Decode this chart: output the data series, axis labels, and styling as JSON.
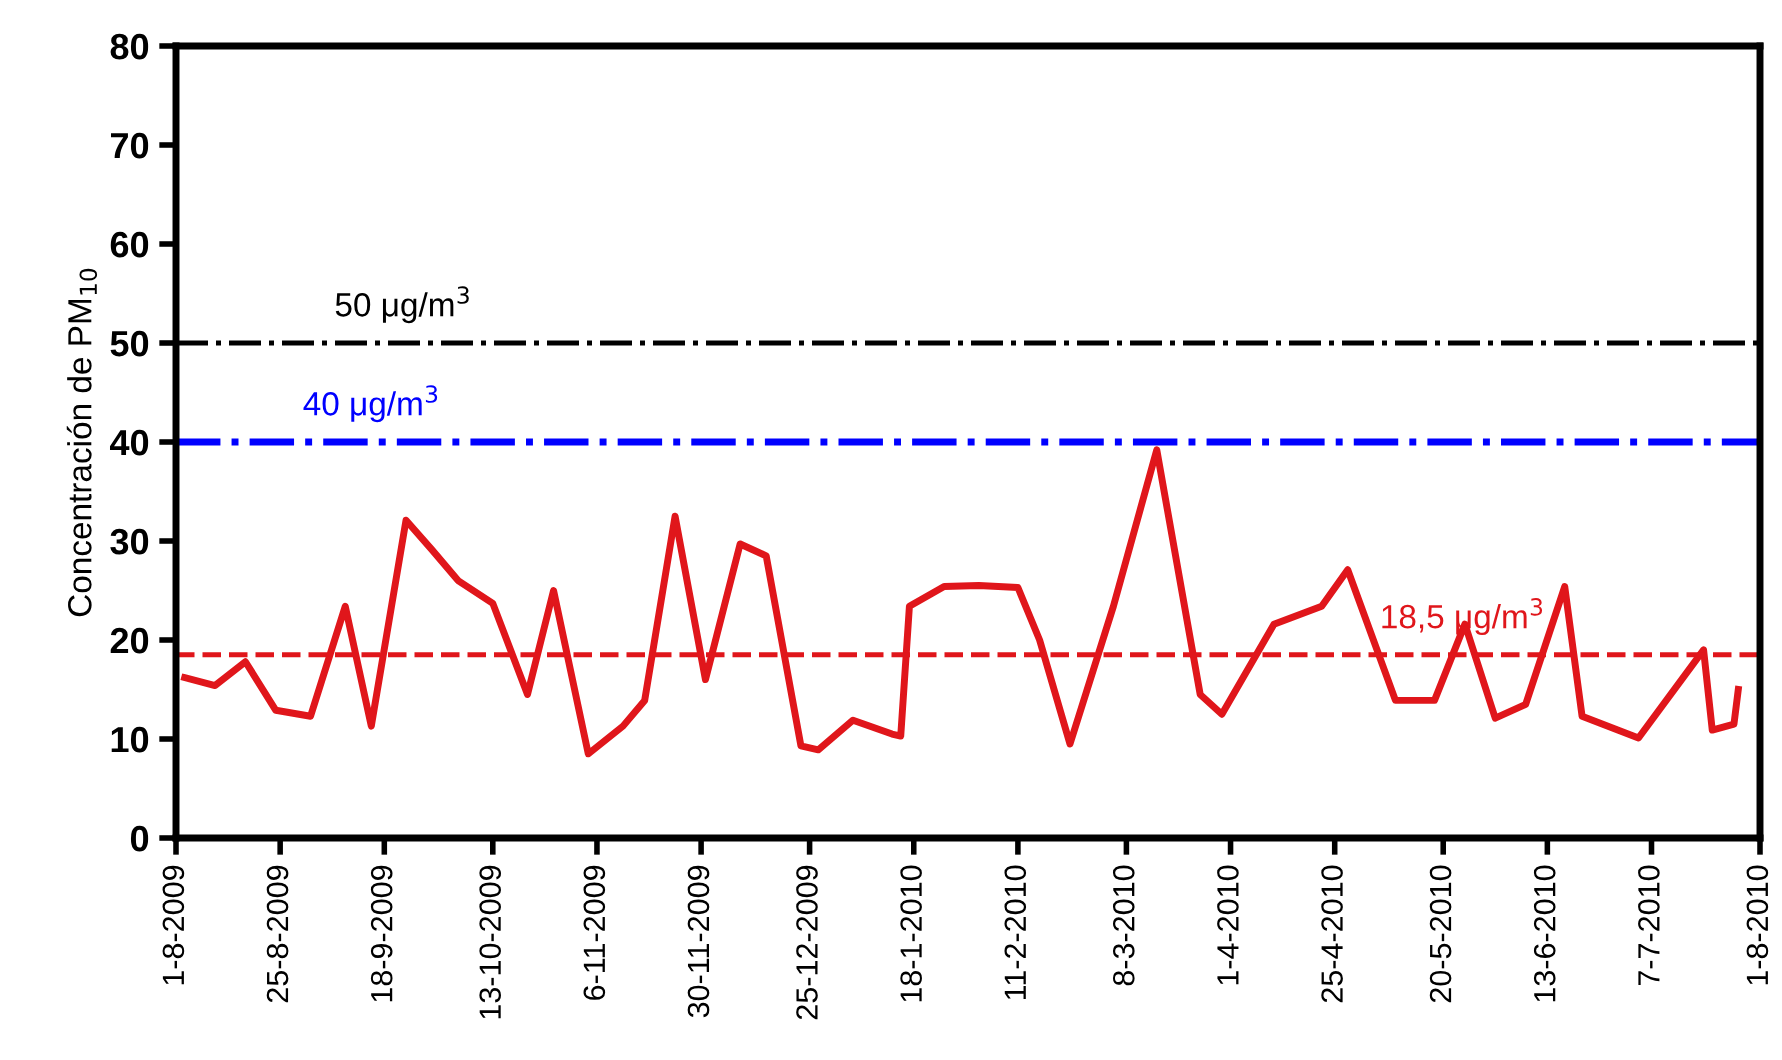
{
  "chart_data": {
    "type": "line",
    "ylabel": "Concentración de PM$_{10}$",
    "series": [
      {
        "color": "#e0161b",
        "x": [
          "2009-08-03",
          "2009-08-10",
          "2009-08-17",
          "2009-08-24",
          "2009-09-01",
          "2009-09-09",
          "2009-09-15",
          "2009-09-23",
          "2009-09-29",
          "2009-10-05",
          "2009-10-13",
          "2009-10-21",
          "2009-10-27",
          "2009-11-04",
          "2009-11-12",
          "2009-11-17",
          "2009-11-24",
          "2009-12-01",
          "2009-12-09",
          "2009-12-15",
          "2009-12-23",
          "2009-12-27",
          "2010-01-04",
          "2010-01-13",
          "2010-01-15",
          "2010-01-17",
          "2010-01-25",
          "2010-02-02",
          "2010-02-11",
          "2010-02-16",
          "2010-02-23",
          "2010-03-05",
          "2010-03-15",
          "2010-03-25",
          "2010-03-30",
          "2010-04-11",
          "2010-04-22",
          "2010-04-28",
          "2010-05-09",
          "2010-05-18",
          "2010-05-25",
          "2010-06-01",
          "2010-06-08",
          "2010-06-17",
          "2010-06-21",
          "2010-07-04",
          "2010-07-19",
          "2010-07-21",
          "2010-07-26",
          "2010-07-27"
        ],
        "values": [
          16.2,
          15.4,
          17.8,
          12.9,
          12.3,
          23.4,
          11.3,
          32.1,
          29.1,
          26,
          23.7,
          14.5,
          25,
          8.5,
          11.3,
          13.9,
          32.5,
          16,
          29.7,
          28.5,
          9.3,
          8.9,
          11.9,
          10.5,
          10.3,
          23.4,
          25.4,
          25.5,
          25.3,
          20,
          9.5,
          23.4,
          39.2,
          14.5,
          12.5,
          21.6,
          23.4,
          27.1,
          13.9,
          13.9,
          21.6,
          12.1,
          13.5,
          25.4,
          12.3,
          10.1,
          19,
          10.9,
          11.5,
          15
        ]
      }
    ],
    "ylim": [
      0,
      80
    ],
    "yticks": [
      0,
      10,
      20,
      30,
      40,
      50,
      60,
      70,
      80
    ],
    "xlim": [
      "2009-08-01",
      "2010-08-01"
    ],
    "xticks": [
      {
        "value": "2009-08-01",
        "label": "1-8-2009"
      },
      {
        "value": "2009-08-25",
        "label": "25-8-2009"
      },
      {
        "value": "2009-09-18",
        "label": "18-9-2009"
      },
      {
        "value": "2009-10-13",
        "label": "13-10-2009"
      },
      {
        "value": "2009-11-06",
        "label": "6-11-2009"
      },
      {
        "value": "2009-11-30",
        "label": "30-11-2009"
      },
      {
        "value": "2009-12-25",
        "label": "25-12-2009"
      },
      {
        "value": "2010-01-18",
        "label": "18-1-2010"
      },
      {
        "value": "2010-02-11",
        "label": "11-2-2010"
      },
      {
        "value": "2010-03-08",
        "label": "8-3-2010"
      },
      {
        "value": "2010-04-01",
        "label": "1-4-2010"
      },
      {
        "value": "2010-04-25",
        "label": "25-4-2010"
      },
      {
        "value": "2010-05-20",
        "label": "20-5-2010"
      },
      {
        "value": "2010-06-13",
        "label": "13-6-2010"
      },
      {
        "value": "2010-07-07",
        "label": "7-7-2010"
      },
      {
        "value": "2010-08-01",
        "label": "1-8-2010"
      }
    ],
    "ref_lines": [
      {
        "axis": "y",
        "value": 50,
        "label": "50 μg/m$^{3}$",
        "color": "#000000",
        "line_style": "dashdot"
      },
      {
        "axis": "y",
        "value": 40,
        "label": "40 μg/m$^{3}$",
        "color": "#0000ff",
        "line_style": "dashdot"
      },
      {
        "axis": "y",
        "value": 18.5,
        "label": "18,5 μg/m$^{3}$",
        "color": "#e0161b",
        "line_style": "dashed"
      }
    ],
    "grid": false,
    "legend": false,
    "marker": "none",
    "line_style": "solid"
  }
}
